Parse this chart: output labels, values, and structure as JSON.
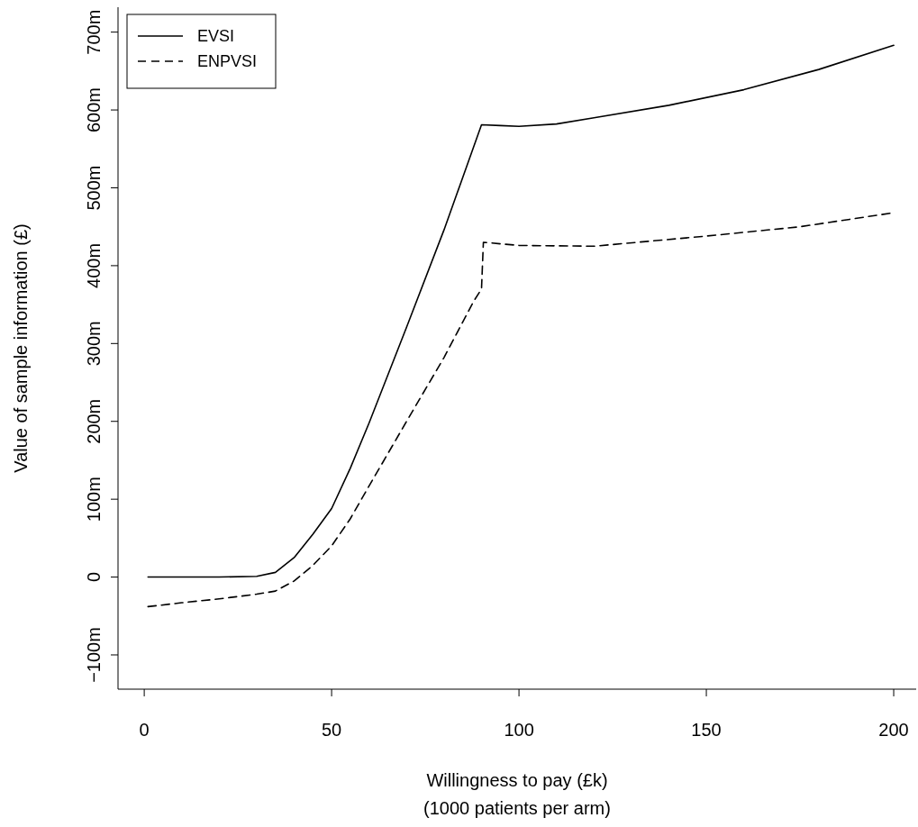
{
  "chart_data": {
    "type": "line",
    "xlabel": "Willingness to pay (£k)\n(1000 patients per arm)",
    "ylabel": "Value of sample information (£)",
    "xlim": [
      -7,
      206
    ],
    "ylim": [
      -144,
      732
    ],
    "xticks": [
      0,
      50,
      100,
      150,
      200
    ],
    "yticks": [
      {
        "value": -100,
        "label": "−100m"
      },
      0,
      {
        "value": 100,
        "label": "100m"
      },
      {
        "value": 200,
        "label": "200m"
      },
      {
        "value": 300,
        "label": "300m"
      },
      {
        "value": 400,
        "label": "400m"
      },
      {
        "value": 500,
        "label": "500m"
      },
      {
        "value": 600,
        "label": "600m"
      },
      {
        "value": 700,
        "label": "700m"
      }
    ],
    "legend": "top left",
    "grid": false,
    "marker": "none",
    "series": [
      {
        "name": "EVSI",
        "color": "#000000",
        "line_style": "solid",
        "x": [
          1,
          10,
          20,
          30,
          35,
          40,
          45,
          50,
          55,
          60,
          70,
          80,
          90,
          95,
          100,
          110,
          120,
          140,
          160,
          180,
          200
        ],
        "values": [
          0,
          0,
          0,
          1,
          6,
          25,
          55,
          88,
          140,
          198,
          321,
          446,
          581,
          580,
          579,
          582,
          590,
          606,
          626,
          652,
          683
        ]
      },
      {
        "name": "ENPVSI",
        "color": "#000000",
        "line_style": "dashed",
        "x": [
          1,
          10,
          20,
          30,
          35,
          40,
          45,
          50,
          55,
          60,
          70,
          80,
          88,
          90,
          90.5,
          100,
          120,
          150,
          175,
          200
        ],
        "values": [
          -38,
          -33,
          -28,
          -22,
          -18,
          -5,
          15,
          40,
          75,
          117,
          200,
          282,
          355,
          370,
          430,
          426,
          425,
          438,
          450,
          468
        ]
      }
    ]
  }
}
